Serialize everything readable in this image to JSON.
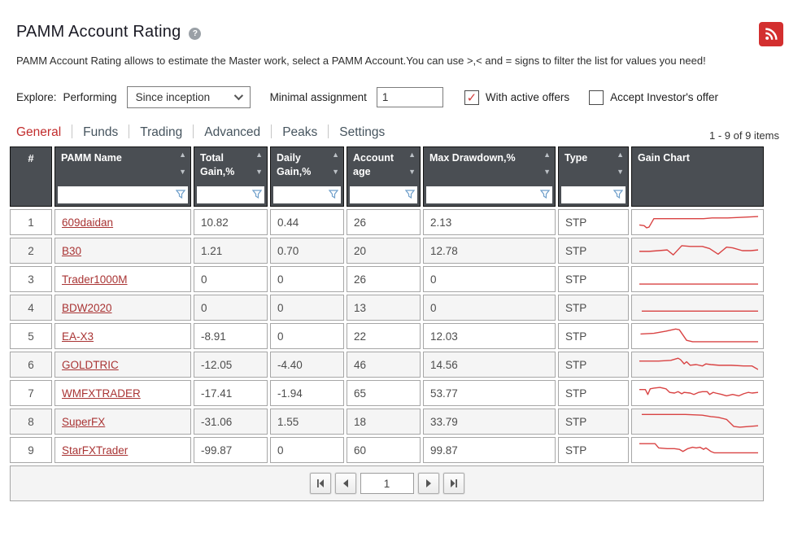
{
  "page": {
    "title": "PAMM Account Rating",
    "description": "PAMM Account Rating allows to estimate the Master work, select a PAMM Account.You can use >,< and = signs to filter the list for values you need!"
  },
  "controls": {
    "explore_label": "Explore:",
    "performing_label": "Performing",
    "period_select_value": "Since inception",
    "minimal_assignment_label": "Minimal assignment",
    "minimal_assignment_value": "1",
    "with_active_offers_label": "With active offers",
    "with_active_offers_checked": true,
    "accept_investors_offer_label": "Accept Investor's offer",
    "accept_investors_offer_checked": false
  },
  "tabs": [
    {
      "label": "General",
      "active": true
    },
    {
      "label": "Funds",
      "active": false
    },
    {
      "label": "Trading",
      "active": false
    },
    {
      "label": "Advanced",
      "active": false
    },
    {
      "label": "Peaks",
      "active": false
    },
    {
      "label": "Settings",
      "active": false
    }
  ],
  "items_count": "1 - 9 of 9 items",
  "table": {
    "columns": [
      {
        "label": "#",
        "sortable": false,
        "filterable": false
      },
      {
        "label": "PAMM Name",
        "sortable": true,
        "filterable": true
      },
      {
        "label": "Total Gain,%",
        "sortable": true,
        "filterable": true
      },
      {
        "label": "Daily Gain,%",
        "sortable": true,
        "filterable": true
      },
      {
        "label": "Account age",
        "sortable": true,
        "filterable": true
      },
      {
        "label": "Max Drawdown,%",
        "sortable": true,
        "filterable": true
      },
      {
        "label": "Type",
        "sortable": true,
        "filterable": true
      },
      {
        "label": "Gain Chart",
        "sortable": false,
        "filterable": false
      }
    ],
    "rows": [
      {
        "num": "1",
        "name": "609daidan",
        "total_gain": "10.82",
        "daily_gain": "0.44",
        "age": "26",
        "max_drawdown": "2.13",
        "type": "STP",
        "spark": [
          [
            2,
            19
          ],
          [
            6,
            20
          ],
          [
            8,
            23
          ],
          [
            10,
            22
          ],
          [
            14,
            10
          ],
          [
            25,
            10
          ],
          [
            40,
            10
          ],
          [
            55,
            10
          ],
          [
            62,
            9
          ],
          [
            75,
            9
          ],
          [
            88,
            8
          ],
          [
            100,
            7
          ]
        ]
      },
      {
        "num": "2",
        "name": "B30",
        "total_gain": "1.21",
        "daily_gain": "0.70",
        "age": "20",
        "max_drawdown": "12.78",
        "type": "STP",
        "spark": [
          [
            2,
            16
          ],
          [
            10,
            16
          ],
          [
            18,
            15
          ],
          [
            25,
            14
          ],
          [
            30,
            21
          ],
          [
            37,
            8
          ],
          [
            44,
            9
          ],
          [
            54,
            9
          ],
          [
            60,
            12
          ],
          [
            67,
            20
          ],
          [
            74,
            10
          ],
          [
            79,
            11
          ],
          [
            87,
            15
          ],
          [
            94,
            15
          ],
          [
            100,
            14
          ]
        ]
      },
      {
        "num": "3",
        "name": "Trader1000M",
        "total_gain": "0",
        "daily_gain": "0",
        "age": "26",
        "max_drawdown": "0",
        "type": "STP",
        "spark": [
          [
            2,
            22
          ],
          [
            100,
            22
          ]
        ]
      },
      {
        "num": "4",
        "name": "BDW2020",
        "total_gain": "0",
        "daily_gain": "0",
        "age": "13",
        "max_drawdown": "0",
        "type": "STP",
        "spark": [
          [
            4,
            20
          ],
          [
            100,
            20
          ]
        ]
      },
      {
        "num": "5",
        "name": "EA-X3",
        "total_gain": "-8.91",
        "daily_gain": "0",
        "age": "22",
        "max_drawdown": "12.03",
        "type": "STP",
        "spark": [
          [
            3,
            12
          ],
          [
            14,
            11
          ],
          [
            24,
            8
          ],
          [
            32,
            5
          ],
          [
            35,
            6
          ],
          [
            41,
            21
          ],
          [
            46,
            23
          ],
          [
            100,
            23
          ]
        ]
      },
      {
        "num": "6",
        "name": "GOLDTRIC",
        "total_gain": "-12.05",
        "daily_gain": "-4.40",
        "age": "46",
        "max_drawdown": "14.56",
        "type": "STP",
        "spark": [
          [
            2,
            10
          ],
          [
            18,
            10
          ],
          [
            28,
            9
          ],
          [
            34,
            6
          ],
          [
            36,
            8
          ],
          [
            39,
            14
          ],
          [
            41,
            11
          ],
          [
            44,
            16
          ],
          [
            49,
            15
          ],
          [
            54,
            17
          ],
          [
            57,
            14
          ],
          [
            61,
            15
          ],
          [
            68,
            16
          ],
          [
            78,
            16
          ],
          [
            88,
            17
          ],
          [
            95,
            17
          ],
          [
            100,
            22
          ]
        ]
      },
      {
        "num": "7",
        "name": "WMFXTRADER",
        "total_gain": "-17.41",
        "daily_gain": "-1.94",
        "age": "65",
        "max_drawdown": "53.77",
        "type": "STP",
        "spark": [
          [
            2,
            10
          ],
          [
            7,
            10
          ],
          [
            9,
            17
          ],
          [
            11,
            9
          ],
          [
            14,
            8
          ],
          [
            19,
            7
          ],
          [
            24,
            9
          ],
          [
            27,
            14
          ],
          [
            31,
            15
          ],
          [
            34,
            13
          ],
          [
            37,
            16
          ],
          [
            39,
            14
          ],
          [
            44,
            15
          ],
          [
            47,
            17
          ],
          [
            51,
            14
          ],
          [
            54,
            13
          ],
          [
            58,
            13
          ],
          [
            60,
            17
          ],
          [
            63,
            14
          ],
          [
            65,
            15
          ],
          [
            70,
            17
          ],
          [
            74,
            19
          ],
          [
            79,
            17
          ],
          [
            84,
            19
          ],
          [
            88,
            16
          ],
          [
            92,
            14
          ],
          [
            95,
            15
          ],
          [
            100,
            14
          ]
        ]
      },
      {
        "num": "8",
        "name": "SuperFX",
        "total_gain": "-31.06",
        "daily_gain": "1.55",
        "age": "18",
        "max_drawdown": "33.79",
        "type": "STP",
        "spark": [
          [
            4,
            5
          ],
          [
            40,
            5
          ],
          [
            54,
            6
          ],
          [
            61,
            8
          ],
          [
            67,
            9
          ],
          [
            74,
            12
          ],
          [
            80,
            22
          ],
          [
            85,
            23
          ],
          [
            100,
            21
          ]
        ]
      },
      {
        "num": "9",
        "name": "StarFXTrader",
        "total_gain": "-99.87",
        "daily_gain": "0",
        "age": "60",
        "max_drawdown": "99.87",
        "type": "STP",
        "spark": [
          [
            2,
            6
          ],
          [
            15,
            6
          ],
          [
            18,
            12
          ],
          [
            25,
            13
          ],
          [
            31,
            13
          ],
          [
            35,
            14
          ],
          [
            38,
            17
          ],
          [
            42,
            13
          ],
          [
            46,
            11
          ],
          [
            49,
            12
          ],
          [
            52,
            11
          ],
          [
            55,
            14
          ],
          [
            57,
            12
          ],
          [
            61,
            17
          ],
          [
            64,
            19
          ],
          [
            100,
            19
          ]
        ]
      }
    ]
  },
  "pagination": {
    "page": "1"
  },
  "colors": {
    "accent_red": "#c22d2d",
    "header_bg": "#4a4e53",
    "link_red": "#a93434",
    "spark_red": "#d94343",
    "filter_icon_blue": "#6f9fca",
    "check_red": "#d23b3b",
    "rss_red": "#d32f2f"
  }
}
